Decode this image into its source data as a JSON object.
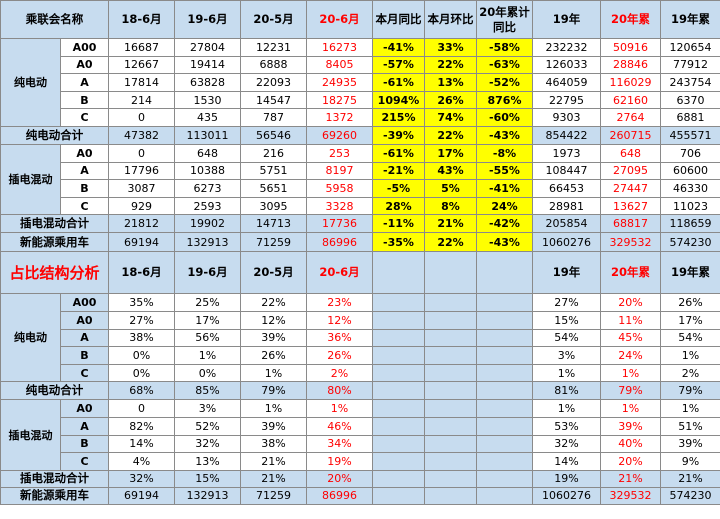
{
  "header": {
    "name": "乘联会名称",
    "c1": "18-6月",
    "c2": "19-6月",
    "c3": "20-5月",
    "c4": "20-6月",
    "yoy": "本月同比",
    "mom": "本月环比",
    "ytd_yoy": "20年累计同比",
    "y19": "19年",
    "ytd20": "20年累",
    "ytd19": "19年累"
  },
  "volume": {
    "bev_group": "纯电动",
    "phev_group": "插电混动",
    "rows": [
      {
        "k": "A00",
        "v": [
          "16687",
          "27804",
          "12231",
          "16273",
          "-41%",
          "33%",
          "-58%",
          "232232",
          "50916",
          "120654"
        ]
      },
      {
        "k": "A0",
        "v": [
          "12667",
          "19414",
          "6888",
          "8405",
          "-57%",
          "22%",
          "-63%",
          "126033",
          "28846",
          "77912"
        ]
      },
      {
        "k": "A",
        "v": [
          "17814",
          "63828",
          "22093",
          "24935",
          "-61%",
          "13%",
          "-52%",
          "464059",
          "116029",
          "243754"
        ]
      },
      {
        "k": "B",
        "v": [
          "214",
          "1530",
          "14547",
          "18275",
          "1094%",
          "26%",
          "876%",
          "22795",
          "62160",
          "6370"
        ]
      },
      {
        "k": "C",
        "v": [
          "0",
          "435",
          "787",
          "1372",
          "215%",
          "74%",
          "-60%",
          "9303",
          "2764",
          "6881"
        ]
      }
    ],
    "bev_total": {
      "k": "纯电动合计",
      "v": [
        "47382",
        "113011",
        "56546",
        "69260",
        "-39%",
        "22%",
        "-43%",
        "854422",
        "260715",
        "455571"
      ]
    },
    "phev_rows": [
      {
        "k": "A0",
        "v": [
          "0",
          "648",
          "216",
          "253",
          "-61%",
          "17%",
          "-8%",
          "1973",
          "648",
          "706"
        ]
      },
      {
        "k": "A",
        "v": [
          "17796",
          "10388",
          "5751",
          "8197",
          "-21%",
          "43%",
          "-55%",
          "108447",
          "27095",
          "60600"
        ]
      },
      {
        "k": "B",
        "v": [
          "3087",
          "6273",
          "5651",
          "5958",
          "-5%",
          "5%",
          "-41%",
          "66453",
          "27447",
          "46330"
        ]
      },
      {
        "k": "C",
        "v": [
          "929",
          "2593",
          "3095",
          "3328",
          "28%",
          "8%",
          "24%",
          "28981",
          "13627",
          "11023"
        ]
      }
    ],
    "phev_total": {
      "k": "插电混动合计",
      "v": [
        "21812",
        "19902",
        "14713",
        "17736",
        "-11%",
        "21%",
        "-42%",
        "205854",
        "68817",
        "118659"
      ]
    },
    "nev_total": {
      "k": "新能源乘用车",
      "v": [
        "69194",
        "132913",
        "71259",
        "86996",
        "-35%",
        "22%",
        "-43%",
        "1060276",
        "329532",
        "574230"
      ]
    }
  },
  "share": {
    "title": "占比结构分析",
    "c1": "18-6月",
    "c2": "19-6月",
    "c3": "20-5月",
    "c4": "20-6月",
    "y19": "19年",
    "ytd20": "20年累",
    "ytd19": "19年累",
    "bev_group": "纯电动",
    "phev_group": "插电混动",
    "rows": [
      {
        "k": "A00",
        "v": [
          "35%",
          "25%",
          "22%",
          "23%",
          "27%",
          "20%",
          "26%"
        ]
      },
      {
        "k": "A0",
        "v": [
          "27%",
          "17%",
          "12%",
          "12%",
          "15%",
          "11%",
          "17%"
        ]
      },
      {
        "k": "A",
        "v": [
          "38%",
          "56%",
          "39%",
          "36%",
          "54%",
          "45%",
          "54%"
        ]
      },
      {
        "k": "B",
        "v": [
          "0%",
          "1%",
          "26%",
          "26%",
          "3%",
          "24%",
          "1%"
        ]
      },
      {
        "k": "C",
        "v": [
          "0%",
          "0%",
          "1%",
          "2%",
          "1%",
          "1%",
          "2%"
        ]
      }
    ],
    "bev_total": {
      "k": "纯电动合计",
      "v": [
        "68%",
        "85%",
        "79%",
        "80%",
        "81%",
        "79%",
        "79%"
      ]
    },
    "phev_rows": [
      {
        "k": "A0",
        "v": [
          "0",
          "3%",
          "1%",
          "1%",
          "1%",
          "1%",
          "1%"
        ]
      },
      {
        "k": "A",
        "v": [
          "82%",
          "52%",
          "39%",
          "46%",
          "53%",
          "39%",
          "51%"
        ]
      },
      {
        "k": "B",
        "v": [
          "14%",
          "32%",
          "38%",
          "34%",
          "32%",
          "40%",
          "39%"
        ]
      },
      {
        "k": "C",
        "v": [
          "4%",
          "13%",
          "21%",
          "19%",
          "14%",
          "20%",
          "9%"
        ]
      }
    ],
    "phev_total": {
      "k": "插电混动合计",
      "v": [
        "32%",
        "15%",
        "21%",
        "20%",
        "19%",
        "21%",
        "21%"
      ]
    },
    "nev_total": {
      "k": "新能源乘用车",
      "v": [
        "69194",
        "132913",
        "71259",
        "86996",
        "1060276",
        "329532",
        "574230"
      ]
    }
  },
  "colors": {
    "header_bg": "#c7dcef",
    "highlight": "#ffff00",
    "red": "#ff0000"
  }
}
